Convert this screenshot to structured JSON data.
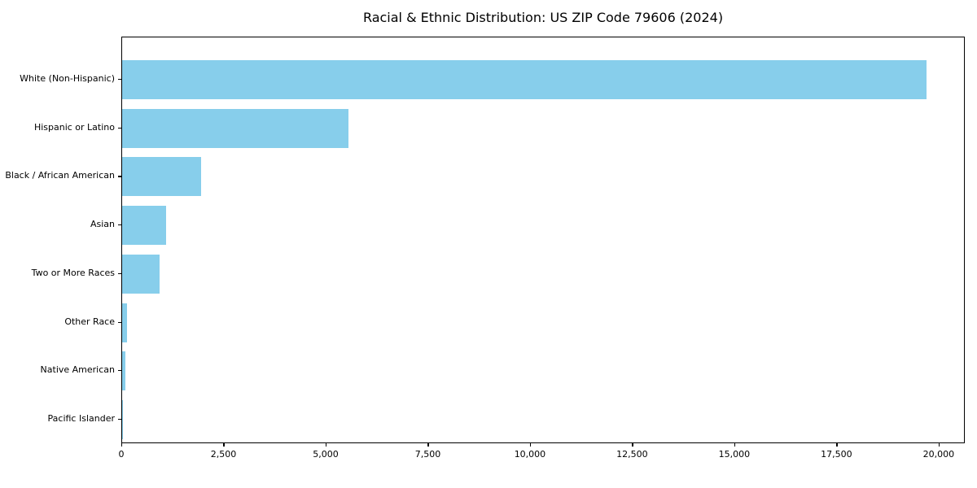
{
  "chart_data": {
    "type": "bar",
    "orientation": "horizontal",
    "title": "Racial & Ethnic Distribution: US ZIP Code 79606 (2024)",
    "categories": [
      "White (Non-Hispanic)",
      "Hispanic or Latino",
      "Black / African American",
      "Asian",
      "Two or More Races",
      "Other Race",
      "Native American",
      "Pacific Islander"
    ],
    "values": [
      19680,
      5540,
      1930,
      1080,
      920,
      120,
      70,
      10
    ],
    "xlabel": "",
    "ylabel": "",
    "xlim": [
      0,
      20640
    ],
    "xticks": [
      0,
      2500,
      5000,
      7500,
      10000,
      12500,
      15000,
      17500,
      20000
    ],
    "xtick_labels": [
      "0",
      "2,500",
      "5,000",
      "7,500",
      "10,000",
      "12,500",
      "15,000",
      "17,500",
      "20,000"
    ],
    "bar_color": "#87CEEB",
    "spine_color": "#000000",
    "grid": false,
    "legend_position": "none"
  }
}
